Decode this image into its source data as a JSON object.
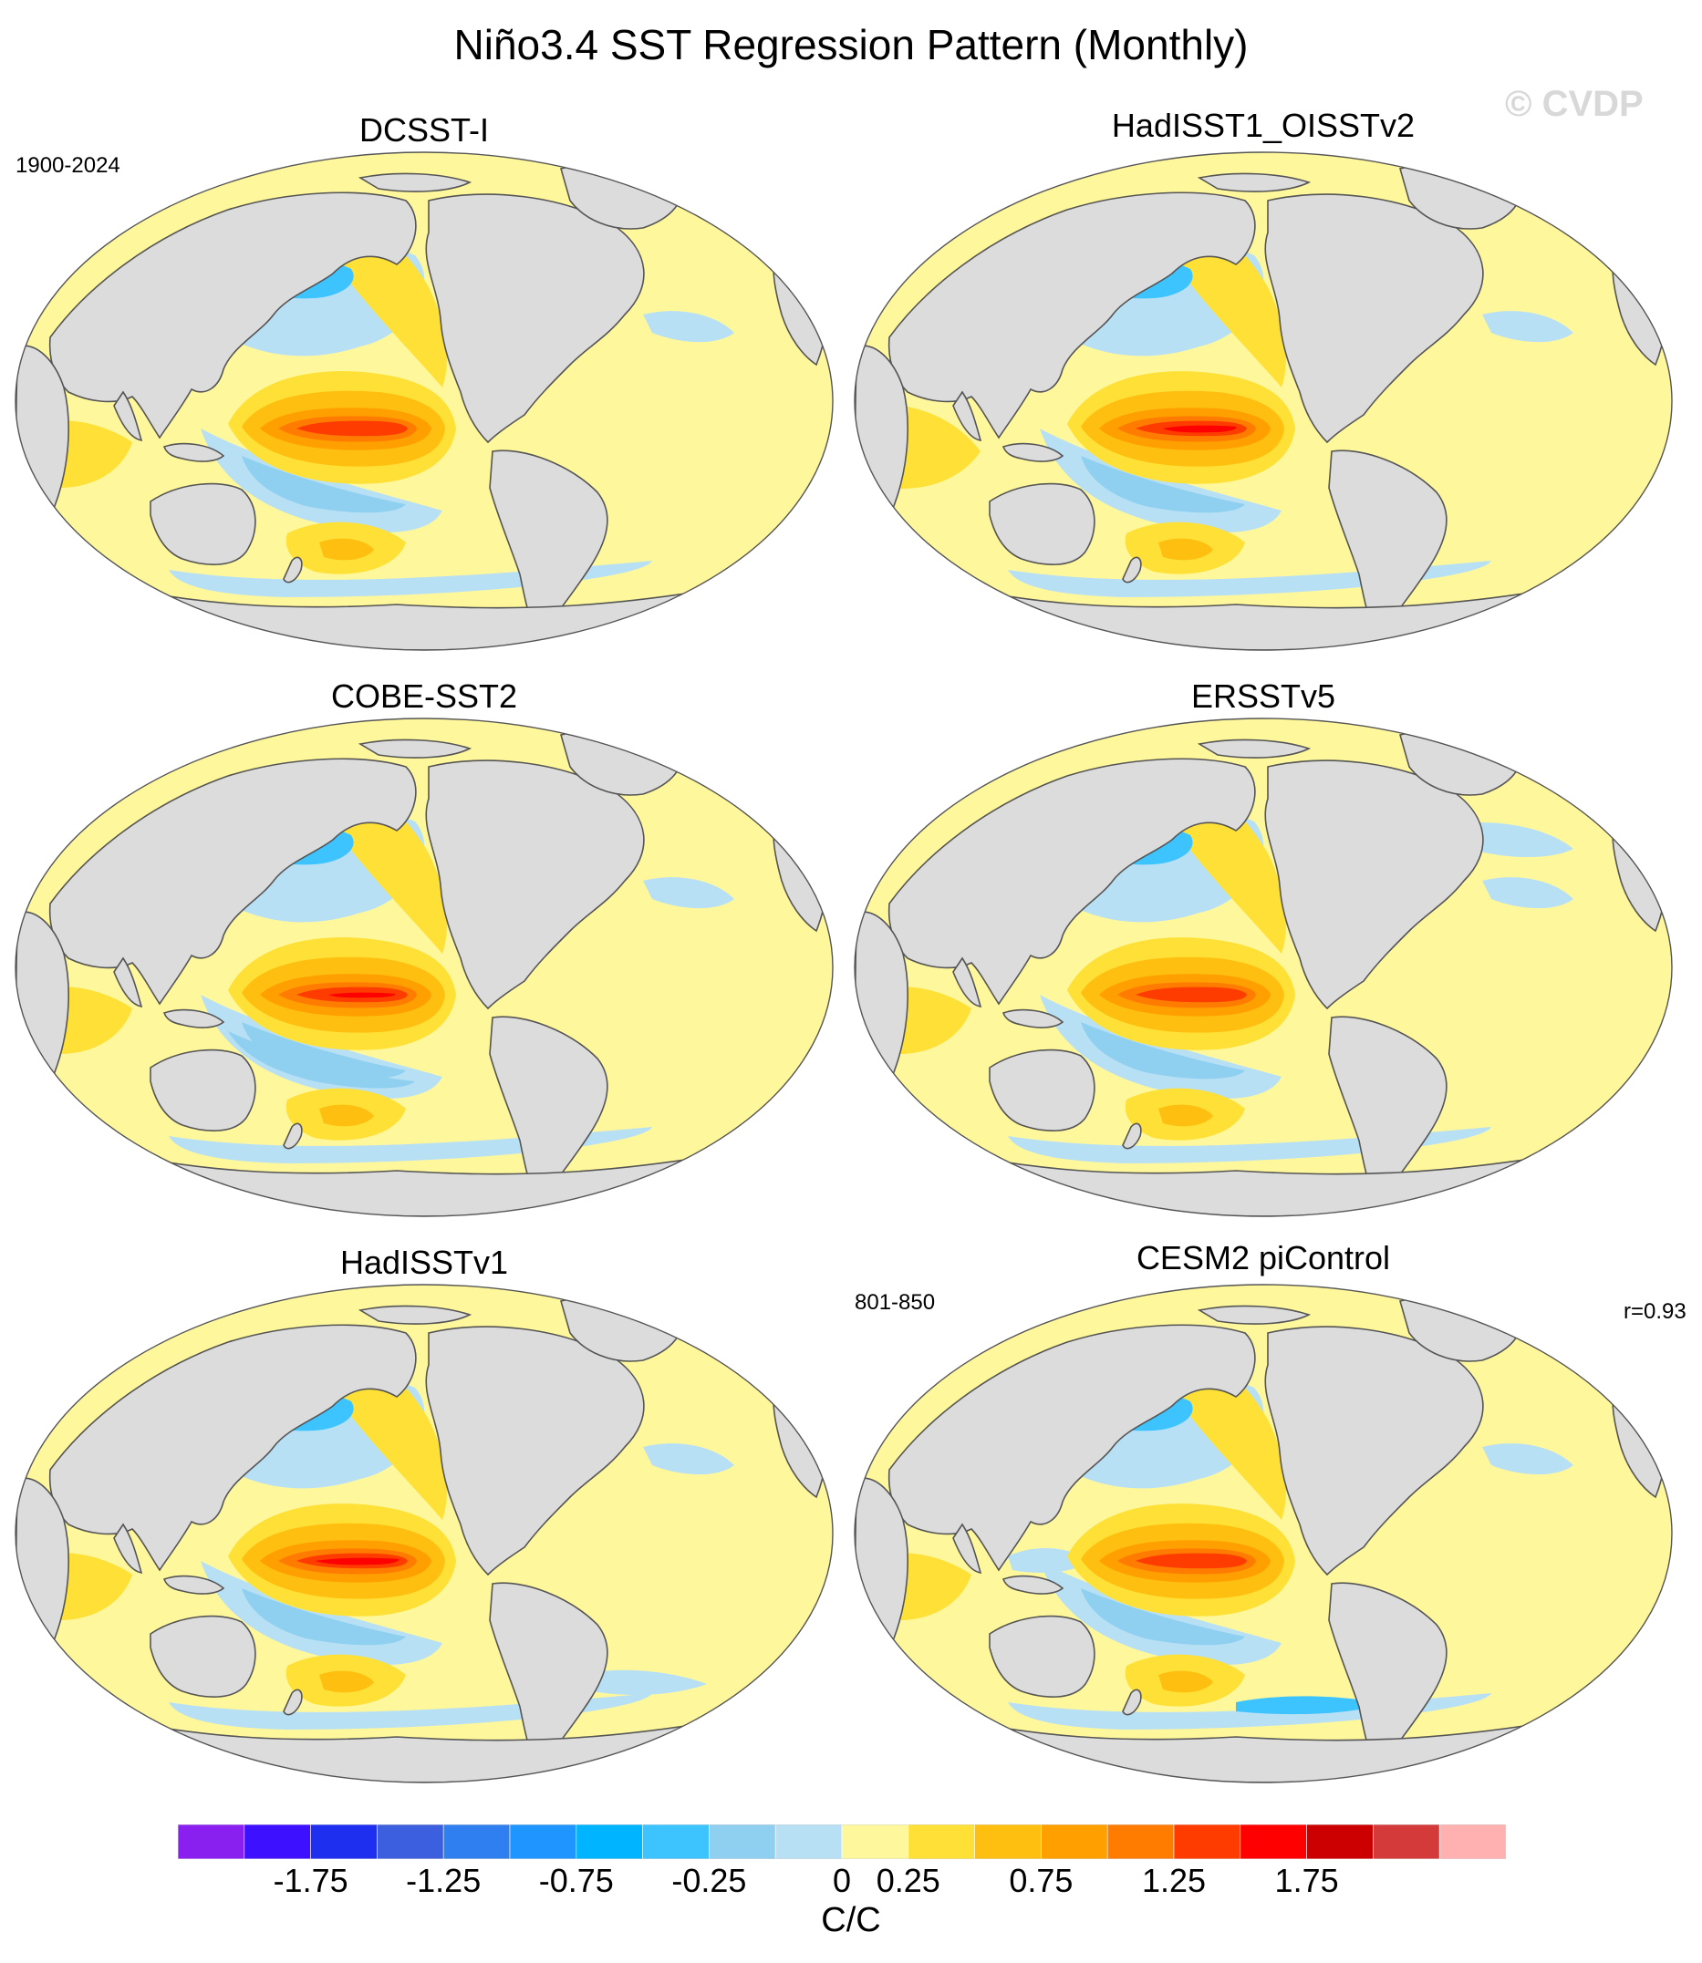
{
  "title": "Niño3.4 SST Regression Pattern (Monthly)",
  "watermark": "© CVDP",
  "panels": [
    {
      "id": "p1",
      "name": "DCSST-I",
      "note_left": "1900-2024",
      "note_right": "",
      "variant": 0
    },
    {
      "id": "p2",
      "name": "HadISST1_OISSTv2",
      "note_left": "",
      "note_right": "",
      "variant": 1
    },
    {
      "id": "p3",
      "name": "COBE-SST2",
      "note_left": "",
      "note_right": "",
      "variant": 2
    },
    {
      "id": "p4",
      "name": "ERSSTv5",
      "note_left": "",
      "note_right": "",
      "variant": 3
    },
    {
      "id": "p5",
      "name": "HadISSTv1",
      "note_left": "",
      "note_right": "",
      "variant": 4
    },
    {
      "id": "p6",
      "name": "CESM2 piControl",
      "note_left": "801-850",
      "note_right": "r=0.93",
      "variant": 5
    }
  ],
  "colorbar": {
    "units": "C/C",
    "colors": [
      "#8a20f0",
      "#3d10ff",
      "#1f2ff0",
      "#3c5fe0",
      "#2f7ff0",
      "#1f95ff",
      "#00b4ff",
      "#3dc4ff",
      "#8fcff0",
      "#b8e0f5",
      "#fff79c",
      "#ffe036",
      "#ffbf10",
      "#ff9f00",
      "#ff7c00",
      "#ff3c00",
      "#ff0000",
      "#cc0000",
      "#d43a3a",
      "#ffb0b0"
    ],
    "labels": [
      "-1.75",
      "-1.25",
      "-0.75",
      "-0.25",
      "0",
      "0.25",
      "0.75",
      "1.25",
      "1.75"
    ],
    "label_boundaries": [
      2,
      4,
      6,
      8,
      10,
      11,
      13,
      15,
      17
    ]
  },
  "map_colors": {
    "land": "#dcdcdc",
    "coast": "#555555",
    "background_ocean": "#fff79c"
  }
}
